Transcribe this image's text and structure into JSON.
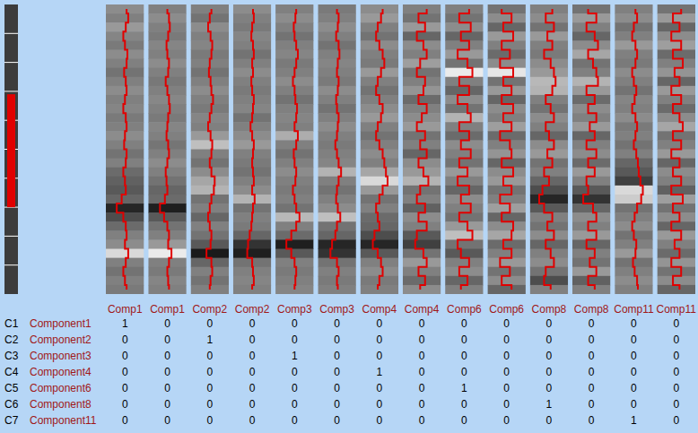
{
  "chart_data": {
    "type": "heatmap",
    "shade_lim": [
      0,
      1
    ],
    "trace_lim": [
      -1,
      1
    ],
    "overview_lim": [
      0,
      1
    ],
    "selection": [
      0.31,
      0.7
    ],
    "tracks": [
      {
        "label": "Comp1",
        "shades": [
          0.55,
          0.5,
          0.6,
          0.52,
          0.48,
          0.55,
          0.5,
          0.45,
          0.5,
          0.55,
          0.5,
          0.52,
          0.48,
          0.5,
          0.55,
          0.5,
          0.45,
          0.5,
          0.42,
          0.38,
          0.35,
          0.4,
          0.15,
          0.3,
          0.42,
          0.5,
          0.55,
          0.85,
          0.5,
          0.45,
          0.5,
          0.48
        ],
        "trace": [
          0.1,
          0.2,
          0.05,
          -0.1,
          0.0,
          0.15,
          0.1,
          -0.05,
          0.05,
          0.1,
          0.0,
          -0.1,
          0.05,
          0.1,
          0.0,
          -0.05,
          0.1,
          0.05,
          -0.1,
          0.0,
          0.05,
          -0.2,
          -0.5,
          -0.1,
          0.05,
          0.1,
          0.0,
          0.2,
          0.05,
          -0.1,
          0.0,
          0.1
        ]
      },
      {
        "label": "Comp1",
        "shades": [
          0.5,
          0.55,
          0.5,
          0.48,
          0.52,
          0.5,
          0.55,
          0.5,
          0.47,
          0.5,
          0.53,
          0.5,
          0.48,
          0.52,
          0.5,
          0.46,
          0.5,
          0.55,
          0.5,
          0.45,
          0.4,
          0.42,
          0.12,
          0.35,
          0.45,
          0.5,
          0.6,
          0.92,
          0.5,
          0.48,
          0.52,
          0.5
        ],
        "trace": [
          0.0,
          0.1,
          0.15,
          0.05,
          -0.05,
          0.0,
          0.1,
          0.05,
          -0.1,
          0.0,
          0.1,
          0.15,
          0.05,
          0.0,
          -0.05,
          0.05,
          0.1,
          0.0,
          -0.1,
          -0.05,
          0.0,
          -0.15,
          -0.45,
          -0.2,
          0.0,
          0.1,
          0.05,
          0.25,
          0.1,
          0.0,
          0.05,
          0.1
        ]
      },
      {
        "label": "Comp2",
        "shades": [
          0.5,
          0.45,
          0.55,
          0.5,
          0.52,
          0.48,
          0.5,
          0.45,
          0.5,
          0.55,
          0.5,
          0.48,
          0.52,
          0.5,
          0.6,
          0.75,
          0.5,
          0.45,
          0.55,
          0.65,
          0.7,
          0.45,
          0.5,
          0.4,
          0.5,
          0.45,
          0.35,
          0.1,
          0.4,
          0.5,
          0.45,
          0.5
        ],
        "trace": [
          0.1,
          0.0,
          -0.1,
          0.05,
          0.15,
          0.1,
          0.0,
          -0.05,
          0.05,
          0.1,
          0.2,
          0.1,
          0.0,
          -0.1,
          0.05,
          0.15,
          0.1,
          0.0,
          0.1,
          0.3,
          0.25,
          0.1,
          0.0,
          -0.1,
          0.0,
          0.1,
          0.05,
          -0.2,
          0.1,
          0.15,
          0.05,
          0.0
        ]
      },
      {
        "label": "Comp2",
        "shades": [
          0.55,
          0.5,
          0.48,
          0.52,
          0.5,
          0.45,
          0.5,
          0.55,
          0.5,
          0.48,
          0.5,
          0.52,
          0.45,
          0.5,
          0.55,
          0.6,
          0.5,
          0.48,
          0.45,
          0.5,
          0.55,
          0.7,
          0.45,
          0.5,
          0.48,
          0.4,
          0.2,
          0.12,
          0.45,
          0.5,
          0.52,
          0.5
        ],
        "trace": [
          0.05,
          0.1,
          0.0,
          -0.05,
          0.05,
          0.1,
          0.0,
          0.05,
          -0.05,
          0.0,
          0.1,
          0.05,
          0.0,
          -0.1,
          0.0,
          0.1,
          0.05,
          0.0,
          0.05,
          0.1,
          0.0,
          0.15,
          0.05,
          0.0,
          -0.05,
          -0.15,
          -0.25,
          -0.3,
          0.0,
          0.05,
          0.1,
          0.0
        ]
      },
      {
        "label": "Comp3",
        "shades": [
          0.5,
          0.55,
          0.5,
          0.45,
          0.5,
          0.52,
          0.48,
          0.5,
          0.55,
          0.5,
          0.45,
          0.5,
          0.52,
          0.5,
          0.68,
          0.5,
          0.45,
          0.5,
          0.55,
          0.5,
          0.48,
          0.5,
          0.45,
          0.72,
          0.5,
          0.42,
          0.12,
          0.35,
          0.5,
          0.48,
          0.5,
          0.52
        ],
        "trace": [
          0.1,
          0.05,
          -0.05,
          0.0,
          0.1,
          0.2,
          0.1,
          0.0,
          -0.1,
          0.0,
          0.05,
          0.15,
          0.1,
          0.0,
          0.2,
          0.1,
          -0.05,
          0.0,
          0.1,
          0.05,
          -0.1,
          0.0,
          0.1,
          0.3,
          0.1,
          -0.2,
          -0.5,
          -0.2,
          0.0,
          0.1,
          0.05,
          0.0
        ]
      },
      {
        "label": "Comp3",
        "shades": [
          0.48,
          0.5,
          0.55,
          0.5,
          0.45,
          0.5,
          0.52,
          0.5,
          0.48,
          0.55,
          0.5,
          0.45,
          0.5,
          0.55,
          0.5,
          0.48,
          0.5,
          0.52,
          0.7,
          0.5,
          0.45,
          0.5,
          0.55,
          0.75,
          0.45,
          0.4,
          0.15,
          0.2,
          0.45,
          0.5,
          0.48,
          0.5
        ],
        "trace": [
          0.0,
          0.1,
          0.05,
          -0.05,
          0.1,
          0.15,
          0.05,
          0.0,
          0.1,
          0.05,
          -0.05,
          0.0,
          0.1,
          0.05,
          0.0,
          -0.1,
          0.0,
          0.1,
          0.25,
          0.1,
          0.0,
          -0.05,
          0.05,
          0.2,
          0.0,
          -0.1,
          -0.3,
          -0.4,
          0.0,
          0.1,
          0.0,
          0.05
        ]
      },
      {
        "label": "Comp4",
        "shades": [
          0.55,
          0.6,
          0.5,
          0.45,
          0.55,
          0.5,
          0.48,
          0.6,
          0.5,
          0.45,
          0.5,
          0.55,
          0.6,
          0.5,
          0.45,
          0.5,
          0.55,
          0.5,
          0.65,
          0.85,
          0.6,
          0.45,
          0.5,
          0.42,
          0.4,
          0.3,
          0.15,
          0.35,
          0.5,
          0.55,
          0.48,
          0.5
        ],
        "trace": [
          0.2,
          0.1,
          -0.1,
          -0.2,
          0.0,
          0.2,
          0.3,
          0.1,
          -0.1,
          -0.2,
          0.0,
          0.2,
          0.1,
          -0.1,
          -0.2,
          0.0,
          0.2,
          0.3,
          0.4,
          0.5,
          0.2,
          0.0,
          -0.2,
          -0.1,
          0.0,
          -0.3,
          -0.4,
          -0.1,
          0.1,
          0.2,
          0.0,
          -0.1
        ]
      },
      {
        "label": "Comp4",
        "shades": [
          0.5,
          0.45,
          0.6,
          0.4,
          0.55,
          0.5,
          0.62,
          0.45,
          0.5,
          0.58,
          0.42,
          0.5,
          0.55,
          0.6,
          0.45,
          0.5,
          0.4,
          0.55,
          0.6,
          0.7,
          0.45,
          0.5,
          0.38,
          0.55,
          0.5,
          0.35,
          0.25,
          0.45,
          0.6,
          0.5,
          0.42,
          0.55
        ],
        "trace": [
          0.3,
          -0.2,
          0.2,
          -0.3,
          0.1,
          0.3,
          -0.1,
          -0.3,
          0.2,
          0.1,
          -0.2,
          0.3,
          0.0,
          -0.3,
          0.2,
          -0.1,
          0.3,
          -0.2,
          0.1,
          0.4,
          -0.1,
          -0.3,
          0.2,
          -0.2,
          0.3,
          -0.3,
          -0.4,
          0.1,
          0.3,
          -0.2,
          0.2,
          -0.1
        ]
      },
      {
        "label": "Comp6",
        "shades": [
          0.5,
          0.45,
          0.55,
          0.4,
          0.5,
          0.6,
          0.45,
          0.92,
          0.5,
          0.4,
          0.55,
          0.45,
          0.7,
          0.5,
          0.42,
          0.55,
          0.5,
          0.45,
          0.6,
          0.5,
          0.4,
          0.55,
          0.5,
          0.45,
          0.6,
          0.75,
          0.45,
          0.35,
          0.5,
          0.55,
          0.4,
          0.5
        ],
        "trace": [
          0.3,
          -0.3,
          0.4,
          -0.2,
          0.3,
          -0.4,
          0.2,
          0.5,
          -0.3,
          0.3,
          -0.4,
          0.2,
          0.4,
          -0.3,
          0.3,
          -0.2,
          0.4,
          -0.3,
          0.2,
          -0.4,
          0.3,
          -0.2,
          0.4,
          -0.3,
          0.2,
          0.5,
          -0.4,
          -0.2,
          0.3,
          -0.3,
          0.2,
          -0.2
        ]
      },
      {
        "label": "Comp6",
        "shades": [
          0.45,
          0.55,
          0.4,
          0.6,
          0.5,
          0.42,
          0.55,
          0.9,
          0.45,
          0.6,
          0.4,
          0.55,
          0.5,
          0.62,
          0.42,
          0.5,
          0.58,
          0.4,
          0.55,
          0.6,
          0.45,
          0.5,
          0.62,
          0.4,
          0.55,
          0.65,
          0.42,
          0.5,
          0.6,
          0.45,
          0.55,
          0.4
        ],
        "trace": [
          -0.3,
          0.3,
          -0.2,
          0.4,
          -0.3,
          0.2,
          -0.4,
          0.4,
          -0.2,
          0.3,
          -0.3,
          0.4,
          -0.2,
          0.3,
          -0.4,
          0.2,
          0.3,
          -0.3,
          0.4,
          -0.2,
          0.3,
          -0.4,
          0.2,
          -0.3,
          0.4,
          0.3,
          -0.2,
          0.3,
          -0.4,
          0.2,
          -0.3,
          0.3
        ]
      },
      {
        "label": "Comp8",
        "shades": [
          0.5,
          0.55,
          0.45,
          0.6,
          0.5,
          0.48,
          0.55,
          0.6,
          0.72,
          0.7,
          0.5,
          0.45,
          0.55,
          0.5,
          0.4,
          0.55,
          0.6,
          0.45,
          0.5,
          0.4,
          0.3,
          0.15,
          0.35,
          0.5,
          0.45,
          0.55,
          0.4,
          0.5,
          0.55,
          0.45,
          0.3,
          0.5
        ],
        "trace": [
          0.2,
          -0.2,
          0.3,
          -0.1,
          0.2,
          -0.3,
          0.1,
          0.3,
          0.4,
          0.2,
          -0.2,
          0.1,
          0.3,
          -0.2,
          0.0,
          0.3,
          -0.1,
          0.2,
          -0.3,
          0.0,
          -0.4,
          -0.6,
          -0.3,
          0.2,
          -0.1,
          0.3,
          -0.2,
          0.1,
          0.3,
          -0.2,
          -0.3,
          0.1
        ]
      },
      {
        "label": "Comp8",
        "shades": [
          0.45,
          0.6,
          0.5,
          0.4,
          0.55,
          0.65,
          0.45,
          0.5,
          0.7,
          0.6,
          0.42,
          0.55,
          0.5,
          0.6,
          0.4,
          0.5,
          0.55,
          0.42,
          0.6,
          0.5,
          0.35,
          0.2,
          0.4,
          0.55,
          0.5,
          0.6,
          0.4,
          0.5,
          0.45,
          0.6,
          0.38,
          0.5
        ],
        "trace": [
          -0.2,
          0.3,
          -0.3,
          0.2,
          0.4,
          -0.2,
          0.1,
          0.3,
          0.4,
          -0.3,
          0.2,
          -0.2,
          0.3,
          -0.1,
          0.2,
          -0.3,
          0.3,
          -0.2,
          0.2,
          -0.3,
          -0.2,
          -0.5,
          0.1,
          0.3,
          -0.2,
          0.3,
          -0.3,
          0.2,
          -0.1,
          0.3,
          -0.2,
          0.2
        ]
      },
      {
        "label": "Comp11",
        "shades": [
          0.5,
          0.55,
          0.45,
          0.5,
          0.6,
          0.5,
          0.48,
          0.55,
          0.5,
          0.45,
          0.52,
          0.5,
          0.55,
          0.48,
          0.5,
          0.45,
          0.5,
          0.4,
          0.35,
          0.25,
          0.85,
          0.8,
          0.45,
          0.5,
          0.55,
          0.45,
          0.5,
          0.6,
          0.45,
          0.5,
          0.55,
          0.5
        ],
        "trace": [
          0.1,
          0.2,
          0.0,
          -0.1,
          0.1,
          0.2,
          0.1,
          -0.1,
          0.0,
          0.15,
          0.05,
          -0.1,
          0.1,
          0.2,
          0.1,
          0.0,
          0.15,
          0.25,
          0.3,
          0.4,
          0.55,
          0.45,
          0.2,
          0.05,
          -0.1,
          0.0,
          0.15,
          0.1,
          -0.05,
          0.05,
          0.2,
          0.25
        ]
      },
      {
        "label": "Comp11",
        "shades": [
          0.45,
          0.6,
          0.4,
          0.55,
          0.62,
          0.42,
          0.5,
          0.58,
          0.4,
          0.6,
          0.5,
          0.42,
          0.55,
          0.65,
          0.45,
          0.5,
          0.6,
          0.4,
          0.55,
          0.5,
          0.38,
          0.62,
          0.45,
          0.55,
          0.4,
          0.6,
          0.5,
          0.42,
          0.58,
          0.45,
          0.55,
          0.4
        ],
        "trace": [
          0.3,
          -0.2,
          0.2,
          -0.3,
          0.3,
          -0.2,
          0.4,
          -0.1,
          0.2,
          -0.3,
          0.3,
          -0.2,
          0.2,
          0.4,
          -0.2,
          0.3,
          -0.3,
          0.2,
          -0.2,
          0.3,
          -0.3,
          0.4,
          -0.2,
          0.2,
          -0.3,
          0.3,
          -0.1,
          0.2,
          -0.3,
          0.3,
          -0.2,
          0.2
        ]
      }
    ],
    "table": {
      "rows": [
        {
          "id": "C1",
          "name": "Component1",
          "values": [
            1,
            0,
            0,
            0,
            0,
            0,
            0,
            0,
            0,
            0,
            0,
            0,
            0,
            0
          ]
        },
        {
          "id": "C2",
          "name": "Component2",
          "values": [
            0,
            0,
            1,
            0,
            0,
            0,
            0,
            0,
            0,
            0,
            0,
            0,
            0,
            0
          ]
        },
        {
          "id": "C3",
          "name": "Component3",
          "values": [
            0,
            0,
            0,
            0,
            1,
            0,
            0,
            0,
            0,
            0,
            0,
            0,
            0,
            0
          ]
        },
        {
          "id": "C4",
          "name": "Component4",
          "values": [
            0,
            0,
            0,
            0,
            0,
            0,
            1,
            0,
            0,
            0,
            0,
            0,
            0,
            0
          ]
        },
        {
          "id": "C5",
          "name": "Component6",
          "values": [
            0,
            0,
            0,
            0,
            0,
            0,
            0,
            0,
            1,
            0,
            0,
            0,
            0,
            0
          ]
        },
        {
          "id": "C6",
          "name": "Component8",
          "values": [
            0,
            0,
            0,
            0,
            0,
            0,
            0,
            0,
            0,
            0,
            1,
            0,
            0,
            0
          ]
        },
        {
          "id": "C7",
          "name": "Component11",
          "values": [
            0,
            0,
            0,
            0,
            0,
            0,
            0,
            0,
            0,
            0,
            0,
            0,
            1,
            0
          ]
        }
      ]
    }
  }
}
